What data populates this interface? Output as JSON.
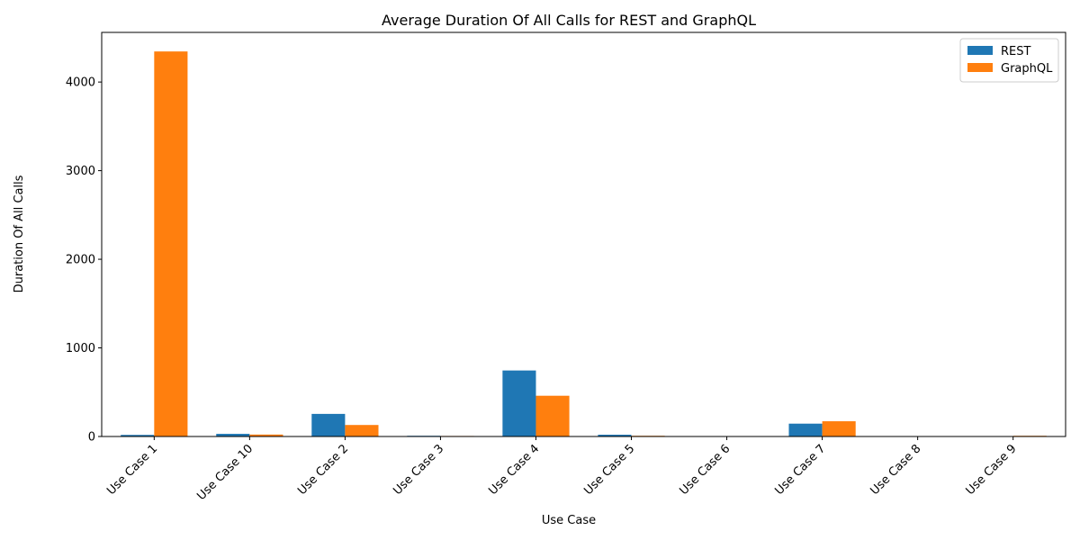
{
  "chart_data": {
    "type": "bar",
    "title": "Average Duration Of All Calls for REST and GraphQL",
    "xlabel": "Use Case",
    "ylabel": "Duration Of All Calls",
    "categories": [
      "Use Case 1",
      "Use Case 10",
      "Use Case 2",
      "Use Case 3",
      "Use Case 4",
      "Use Case 5",
      "Use Case 6",
      "Use Case 7",
      "Use Case 8",
      "Use Case 9"
    ],
    "series": [
      {
        "name": "REST",
        "color": "#1f77b4",
        "values": [
          18,
          30,
          255,
          8,
          745,
          20,
          2,
          145,
          2,
          2
        ]
      },
      {
        "name": "GraphQL",
        "color": "#ff7f0e",
        "values": [
          4345,
          22,
          130,
          6,
          460,
          8,
          2,
          172,
          2,
          8
        ]
      }
    ],
    "ylim": [
      0,
      4560
    ],
    "yticks": [
      0,
      1000,
      2000,
      3000,
      4000
    ],
    "grid": false,
    "legend_position": "top-right"
  }
}
